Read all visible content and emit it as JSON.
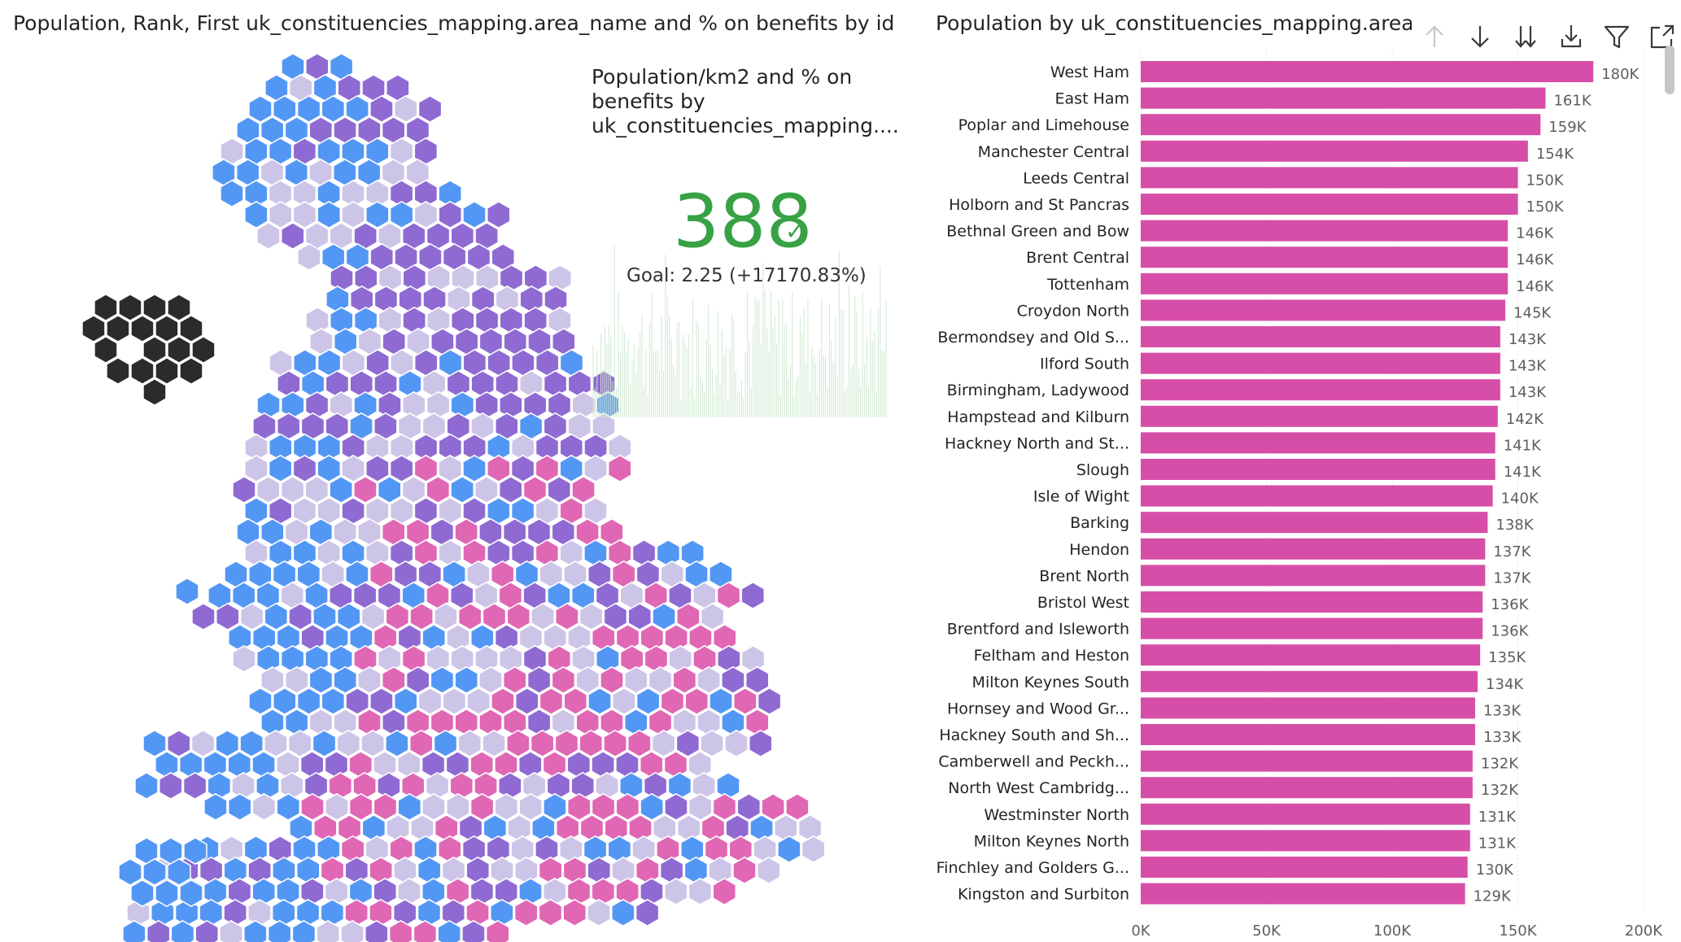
{
  "left_visual": {
    "title": "Population, Rank, First uk_constituencies_mapping.area_name and % on benefits by id"
  },
  "kpi": {
    "title": "Population/km2 and % on benefits by uk_constituencies_mapping....",
    "value": "388",
    "goal_text": "Goal: 2.25 (+17170.83%)",
    "check_icon": "checkmark-icon",
    "value_color": "#37a245"
  },
  "right_visual": {
    "title": "Population by uk_constituencies_mapping.area_",
    "toolbar": [
      {
        "name": "drill-up-icon",
        "label": "Drill up"
      },
      {
        "name": "drill-down-icon",
        "label": "Drill down"
      },
      {
        "name": "go-to-next-level-icon",
        "label": "Go to next level"
      },
      {
        "name": "expand-hierarchy-icon",
        "label": "Expand all down one level"
      },
      {
        "name": "filter-icon",
        "label": "Filter"
      },
      {
        "name": "focus-mode-icon",
        "label": "Focus mode"
      }
    ]
  },
  "colors": {
    "bar": "#d64ea8",
    "hex_light": "#cdc5e8",
    "hex_blue": "#5397f5",
    "hex_purple": "#8f6ad2",
    "hex_pink": "#e067b4",
    "hex_dark": "#2b2b2b"
  },
  "chart_data": {
    "type": "bar",
    "orientation": "horizontal",
    "categories": [
      "West Ham",
      "East Ham",
      "Poplar and Limehouse",
      "Manchester Central",
      "Leeds Central",
      "Holborn and St Pancras",
      "Bethnal Green and Bow",
      "Brent Central",
      "Tottenham",
      "Croydon North",
      "Bermondsey and Old S...",
      "Ilford South",
      "Birmingham, Ladywood",
      "Hampstead and Kilburn",
      "Hackney North and St...",
      "Slough",
      "Isle of Wight",
      "Barking",
      "Hendon",
      "Brent North",
      "Bristol West",
      "Brentford and Isleworth",
      "Feltham and Heston",
      "Milton Keynes South",
      "Hornsey and Wood Gr...",
      "Hackney South and Sh...",
      "Camberwell and Peckh...",
      "North West Cambridg...",
      "Westminster North",
      "Milton Keynes North",
      "Finchley and Golders G...",
      "Kingston and Surbiton"
    ],
    "values": [
      180000,
      161000,
      159000,
      154000,
      150000,
      150000,
      146000,
      146000,
      146000,
      145000,
      143000,
      143000,
      143000,
      142000,
      141000,
      141000,
      140000,
      138000,
      137000,
      137000,
      136000,
      136000,
      135000,
      134000,
      133000,
      133000,
      132000,
      132000,
      131000,
      131000,
      130000,
      129000
    ],
    "value_labels": [
      "180K",
      "161K",
      "159K",
      "154K",
      "150K",
      "150K",
      "146K",
      "146K",
      "146K",
      "145K",
      "143K",
      "143K",
      "143K",
      "142K",
      "141K",
      "141K",
      "140K",
      "138K",
      "137K",
      "137K",
      "136K",
      "136K",
      "135K",
      "134K",
      "133K",
      "133K",
      "132K",
      "132K",
      "131K",
      "131K",
      "130K",
      "129K"
    ],
    "xlim": [
      0,
      200000
    ],
    "xticks": [
      "0K",
      "50K",
      "100K",
      "150K",
      "200K"
    ],
    "grid": true
  }
}
